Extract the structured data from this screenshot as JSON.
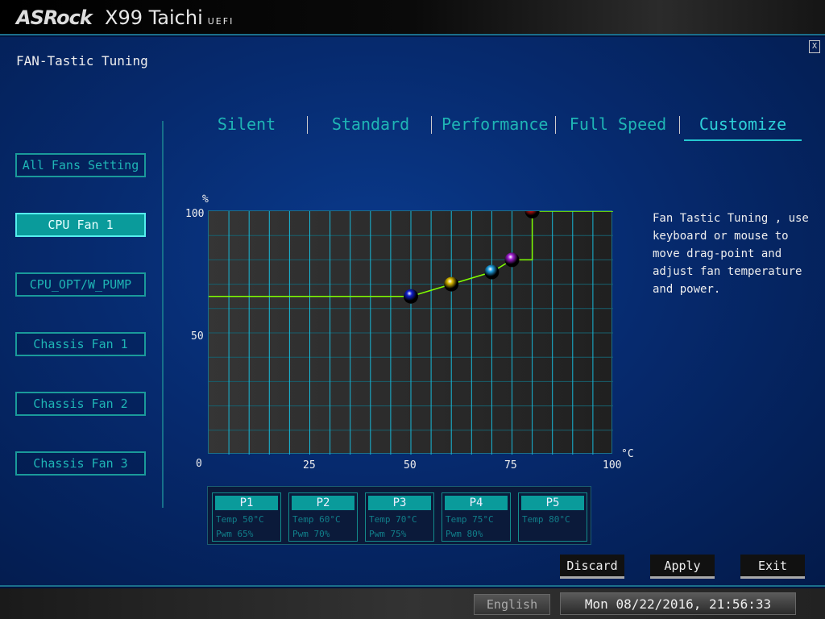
{
  "header": {
    "brand": "ASRock",
    "model": "X99 Taichi",
    "suffix": "UEFI"
  },
  "page_title": "FAN-Tastic Tuning",
  "close_label": "X",
  "tabs": [
    {
      "label": "Silent"
    },
    {
      "label": "Standard"
    },
    {
      "label": "Performance"
    },
    {
      "label": "Full Speed"
    },
    {
      "label": "Customize",
      "active": true
    }
  ],
  "fans": [
    {
      "label": "All Fans Setting"
    },
    {
      "label": "CPU Fan 1",
      "active": true
    },
    {
      "label": "CPU_OPT/W_PUMP"
    },
    {
      "label": "Chassis Fan 1"
    },
    {
      "label": "Chassis Fan 2"
    },
    {
      "label": "Chassis Fan 3"
    }
  ],
  "chart_data": {
    "type": "line",
    "ylabel": "%",
    "xlabel": "°C",
    "xlim": [
      0,
      100
    ],
    "ylim": [
      0,
      100
    ],
    "x_ticks": [
      "0",
      "25",
      "50",
      "75",
      "100"
    ],
    "y_ticks": [
      "100",
      "50",
      "0"
    ],
    "grid": true,
    "line_color": "#80ff00",
    "points": [
      {
        "name": "P1",
        "x": 50,
        "y": 65,
        "color": "#1020d0"
      },
      {
        "name": "P2",
        "x": 60,
        "y": 70,
        "color": "#d8b800"
      },
      {
        "name": "P3",
        "x": 70,
        "y": 75,
        "color": "#20a0e0"
      },
      {
        "name": "P4",
        "x": 75,
        "y": 80,
        "color": "#a020d0"
      },
      {
        "name": "P5",
        "x": 80,
        "y": 100,
        "color": "#d01010"
      }
    ]
  },
  "help_text": "Fan Tastic Tuning , use keyboard or mouse to move drag-point and adjust fan temperature and power.",
  "points_table": [
    {
      "name": "P1",
      "temp": "Temp  50°C",
      "pwm": "Pwm   65%"
    },
    {
      "name": "P2",
      "temp": "Temp  60°C",
      "pwm": "Pwm   70%"
    },
    {
      "name": "P3",
      "temp": "Temp  70°C",
      "pwm": "Pwm   75%"
    },
    {
      "name": "P4",
      "temp": "Temp  75°C",
      "pwm": "Pwm   80%"
    },
    {
      "name": "P5",
      "temp": "Temp  80°C",
      "pwm": ""
    }
  ],
  "buttons": {
    "discard": "Discard",
    "apply": "Apply",
    "exit": "Exit"
  },
  "footer": {
    "language": "English",
    "datetime": "Mon 08/22/2016, 21:56:33"
  }
}
